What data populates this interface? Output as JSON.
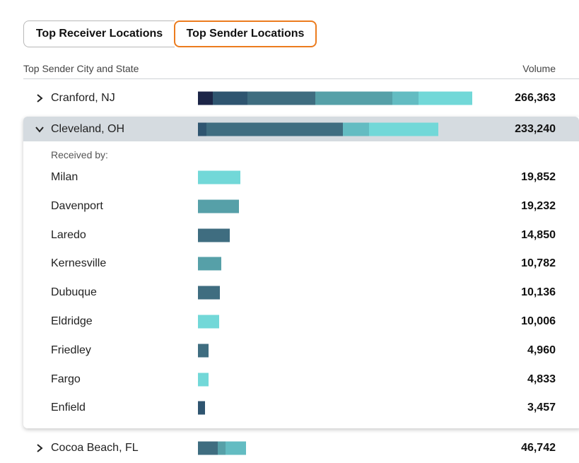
{
  "tabs": [
    {
      "label": "Top Receiver Locations",
      "active": false
    },
    {
      "label": "Top Sender Locations",
      "active": true
    }
  ],
  "accent_color": "#ec7c1e",
  "table": {
    "city_header": "Top Sender City and State",
    "volume_header": "Volume"
  },
  "palette": {
    "c1": "#1c2547",
    "c2": "#2f5570",
    "c3": "#3f6d80",
    "c4": "#56a0a8",
    "c5": "#63bcc2",
    "c6": "#72d8d8"
  },
  "rows": [
    {
      "city": "Cranford, NJ",
      "volume": "266,363",
      "volume_num": 266363,
      "expanded": false,
      "segments": [
        {
          "value": 14500,
          "color": "#1c2547"
        },
        {
          "value": 33500,
          "color": "#2f5570"
        },
        {
          "value": 66000,
          "color": "#3f6d80"
        },
        {
          "value": 75000,
          "color": "#56a0a8"
        },
        {
          "value": 25500,
          "color": "#63bcc2"
        },
        {
          "value": 51863,
          "color": "#72d8d8"
        }
      ]
    },
    {
      "city": "Cleveland, OH",
      "volume": "233,240",
      "volume_num": 233240,
      "expanded": true,
      "segments": [
        {
          "value": 8300,
          "color": "#2f5570"
        },
        {
          "value": 132500,
          "color": "#3f6d80"
        },
        {
          "value": 25000,
          "color": "#63bcc2"
        },
        {
          "value": 67440,
          "color": "#72d8d8"
        }
      ],
      "received_by_label": "Received by:",
      "receivers": [
        {
          "city": "Milan",
          "volume": "19,852",
          "volume_num": 19852,
          "color": "#72d8d8"
        },
        {
          "city": "Davenport",
          "volume": "19,232",
          "volume_num": 19232,
          "color": "#56a0a8"
        },
        {
          "city": "Laredo",
          "volume": "14,850",
          "volume_num": 14850,
          "color": "#3f6d80"
        },
        {
          "city": "Kernesville",
          "volume": "10,782",
          "volume_num": 10782,
          "color": "#56a0a8"
        },
        {
          "city": "Dubuque",
          "volume": "10,136",
          "volume_num": 10136,
          "color": "#3f6d80"
        },
        {
          "city": "Eldridge",
          "volume": "10,006",
          "volume_num": 10006,
          "color": "#72d8d8"
        },
        {
          "city": "Friedley",
          "volume": "4,960",
          "volume_num": 4960,
          "color": "#3f6d80"
        },
        {
          "city": "Fargo",
          "volume": "4,833",
          "volume_num": 4833,
          "color": "#72d8d8"
        },
        {
          "city": "Enfield",
          "volume": "3,457",
          "volume_num": 3457,
          "color": "#2f5570"
        }
      ]
    },
    {
      "city": "Cocoa Beach, FL",
      "volume": "46,742",
      "volume_num": 46742,
      "expanded": false,
      "segments": [
        {
          "value": 19000,
          "color": "#3f6d80"
        },
        {
          "value": 7500,
          "color": "#56a0a8"
        },
        {
          "value": 20242,
          "color": "#63bcc2"
        }
      ]
    }
  ]
}
